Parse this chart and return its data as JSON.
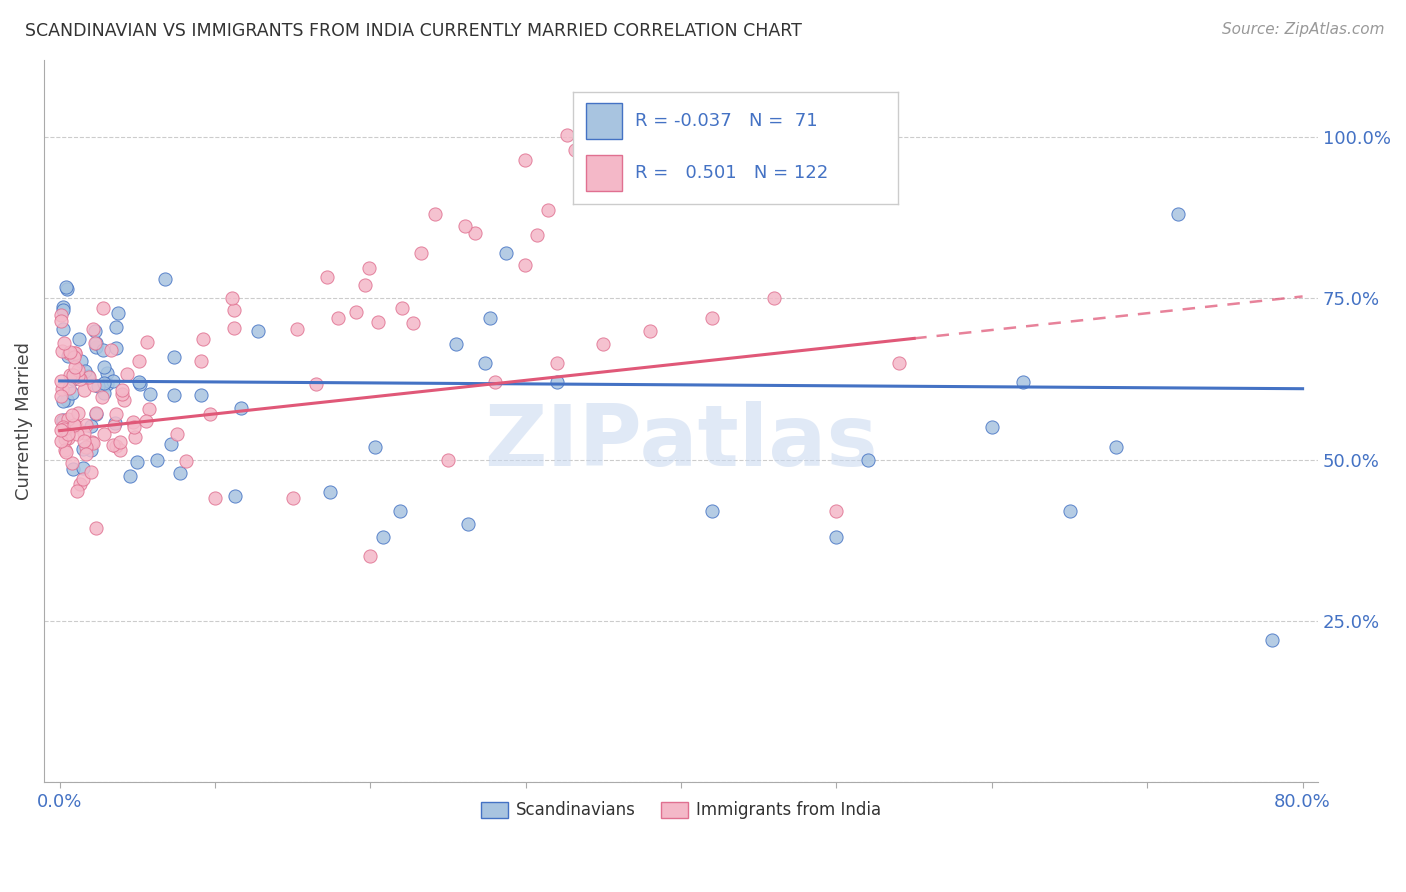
{
  "title": "SCANDINAVIAN VS IMMIGRANTS FROM INDIA CURRENTLY MARRIED CORRELATION CHART",
  "source": "Source: ZipAtlas.com",
  "ylabel": "Currently Married",
  "color_scand": "#a8c4e0",
  "color_scand_edge": "#4472c4",
  "color_india": "#f4b8c8",
  "color_india_edge": "#e07090",
  "color_line_scand": "#4472c4",
  "color_line_india": "#e05878",
  "color_axis_labels": "#4472c4",
  "color_grid": "#cccccc",
  "watermark": "ZIPatlas",
  "watermark_color": "#c8d8f0",
  "legend_text_color": "#4472c4",
  "legend_r1": "R = -0.037",
  "legend_n1": "N =  71",
  "legend_r2": "R =  0.501",
  "legend_n2": "N = 122"
}
